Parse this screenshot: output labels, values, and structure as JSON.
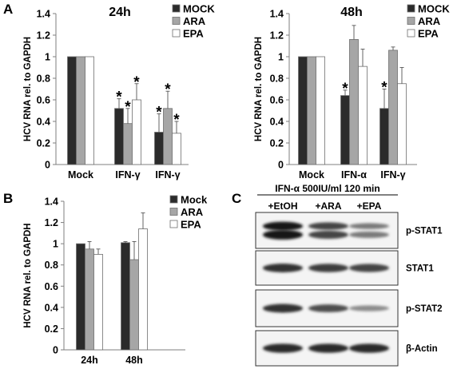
{
  "panels": [
    {
      "letter": "A"
    },
    {
      "letter": ""
    },
    {
      "letter": "B"
    },
    {
      "letter": "C"
    }
  ],
  "chart_data": [
    {
      "type": "bar",
      "title": "24h",
      "ylabel": "HCV RNA rel. to GAPDH",
      "ylim": [
        0,
        1.4
      ],
      "yticks": [
        "0",
        "0.2",
        "0.4",
        "0.6",
        "0.8",
        "1",
        "1.2",
        "1.4"
      ],
      "categories": [
        "Mock",
        "IFN-γ",
        "IFN-γ"
      ],
      "series": [
        {
          "name": "MOCK",
          "color": "#2b2b2b",
          "values": [
            1.0,
            0.52,
            0.3
          ],
          "errors": [
            0,
            0.09,
            0.17
          ]
        },
        {
          "name": "ARA",
          "color": "#a6a6a6",
          "values": [
            1.0,
            0.38,
            0.52
          ],
          "errors": [
            0,
            0.14,
            0.16
          ]
        },
        {
          "name": "EPA",
          "color": "#ffffff",
          "values": [
            1.0,
            0.6,
            0.29
          ],
          "errors": [
            0,
            0.15,
            0.11
          ]
        }
      ],
      "significance": [
        {
          "category": 1,
          "series": 0,
          "label": "*"
        },
        {
          "category": 1,
          "series": 1,
          "label": "*"
        },
        {
          "category": 1,
          "series": 2,
          "label": "*"
        },
        {
          "category": 2,
          "series": 0,
          "label": "*"
        },
        {
          "category": 2,
          "series": 1,
          "label": "*"
        },
        {
          "category": 2,
          "series": 2,
          "label": "*"
        }
      ],
      "legend_position": "top-right"
    },
    {
      "type": "bar",
      "title": "48h",
      "ylabel": "HCV RNA rel. to GAPDH",
      "ylim": [
        0,
        1.4
      ],
      "yticks": [
        "0",
        "0.2",
        "0.4",
        "0.6",
        "0.8",
        "1",
        "1.2",
        "1.4"
      ],
      "categories": [
        "Mock",
        "IFN-α",
        "IFN-γ"
      ],
      "series": [
        {
          "name": "MOCK",
          "color": "#2b2b2b",
          "values": [
            1.0,
            0.64,
            0.52
          ],
          "errors": [
            0,
            0.05,
            0.18
          ]
        },
        {
          "name": "ARA",
          "color": "#a6a6a6",
          "values": [
            1.0,
            1.16,
            1.06
          ],
          "errors": [
            0,
            0.13,
            0.03
          ]
        },
        {
          "name": "EPA",
          "color": "#ffffff",
          "values": [
            1.0,
            0.91,
            0.75
          ],
          "errors": [
            0,
            0.16,
            0.15
          ]
        }
      ],
      "significance": [
        {
          "category": 1,
          "series": 0,
          "label": "*"
        },
        {
          "category": 2,
          "series": 0,
          "label": "*"
        }
      ],
      "legend_position": "top-right"
    },
    {
      "type": "bar",
      "title": "",
      "ylabel": "HCV RNA rel. to GAPDH",
      "ylim": [
        0,
        1.4
      ],
      "yticks": [
        "0",
        "0.2",
        "0.4",
        "0.6",
        "0.8",
        "1",
        "1.2",
        "1.4"
      ],
      "categories": [
        "24h",
        "48h"
      ],
      "series": [
        {
          "name": "Mock",
          "color": "#2b2b2b",
          "values": [
            1.0,
            1.01
          ],
          "errors": [
            0,
            0.01
          ]
        },
        {
          "name": "ARA",
          "color": "#a6a6a6",
          "values": [
            0.95,
            0.85
          ],
          "errors": [
            0.07,
            0.17
          ]
        },
        {
          "name": "EPA",
          "color": "#ffffff",
          "values": [
            0.9,
            1.14
          ],
          "errors": [
            0.05,
            0.15
          ]
        }
      ],
      "significance": [],
      "legend_position": "top-right"
    }
  ],
  "western_blot": {
    "header_line1": "IFN-α 500IU/ml  120 min",
    "lanes": [
      "+EtOH",
      "+ARA",
      "+EPA"
    ],
    "rows": [
      {
        "label": "p-STAT1",
        "intensity": [
          1.0,
          0.75,
          0.45
        ],
        "double_band": true
      },
      {
        "label": "STAT1",
        "intensity": [
          0.85,
          0.8,
          0.75
        ],
        "double_band": false
      },
      {
        "label": "p-STAT2",
        "intensity": [
          0.85,
          0.7,
          0.35
        ],
        "double_band": false
      },
      {
        "label": "β-Actin",
        "intensity": [
          0.9,
          0.9,
          0.9
        ],
        "double_band": false
      }
    ]
  }
}
